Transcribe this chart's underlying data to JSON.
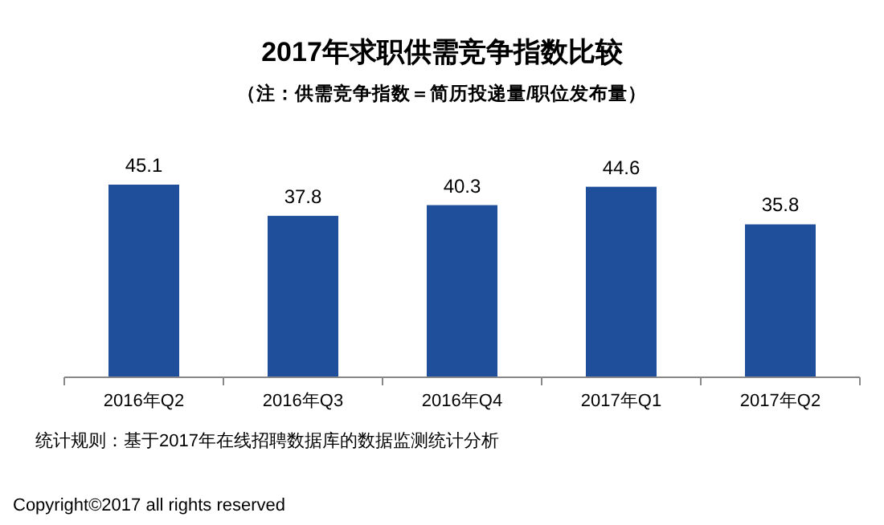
{
  "chart_data": {
    "type": "bar",
    "title": "2017年求职供需竞争指数比较",
    "subtitle": "（注：供需竞争指数＝简历投递量/职位发布量）",
    "categories": [
      "2016年Q2",
      "2016年Q3",
      "2016年Q4",
      "2017年Q1",
      "2017年Q2"
    ],
    "values": [
      45.1,
      37.8,
      40.3,
      44.6,
      35.8
    ],
    "color": "#1f4e9a",
    "data_labels": true,
    "annotations": [
      "统计规则：基于2017年在线招聘数据库的数据监测统计分析",
      "Copyright©2017 all rights reserved"
    ]
  }
}
